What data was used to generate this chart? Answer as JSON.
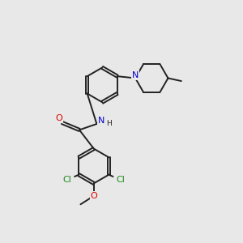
{
  "bg_color": "#e8e8e8",
  "bond_color": "#222222",
  "bond_lw": 1.4,
  "dbl_off": 0.055,
  "atom_colors": {
    "O": "#dd0000",
    "N": "#0000cc",
    "Cl": "#1a8a1a",
    "C": "#222222"
  },
  "fs": 8.5,
  "xlim": [
    0,
    10
  ],
  "ylim": [
    0,
    10
  ],
  "ring_r": 0.72
}
